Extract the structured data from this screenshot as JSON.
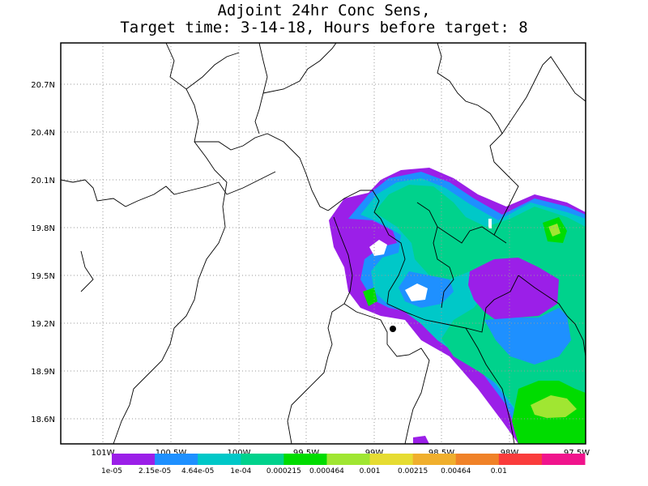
{
  "title": {
    "line1": "Adjoint 24hr Conc Sens,",
    "line2": "Target time: 3-14-18, Hours before target: 8"
  },
  "chart_data": {
    "type": "heatmap",
    "title": "Adjoint 24hr Conc Sens, Target time: 3-14-18, Hours before target: 8",
    "lon_range": [
      -101.3,
      -97.5
    ],
    "lat_range": [
      18.35,
      20.95
    ],
    "grid": true,
    "y_ticks": [
      "20.7N",
      "20.4N",
      "20.1N",
      "19.8N",
      "19.5N",
      "19.2N",
      "18.9N",
      "18.6N"
    ],
    "x_ticks": [
      "101W",
      "100.5W",
      "100W",
      "99.5W",
      "99W",
      "98.5W",
      "98W",
      "97.5W"
    ],
    "legend": {
      "labels": [
        "1e-05",
        "2.15e-05",
        "4.64e-05",
        "1e-04",
        "0.000215",
        "0.000464",
        "0.001",
        "0.00215",
        "0.00464",
        "0.01"
      ],
      "colors": [
        "#9b1fe8",
        "#1e90ff",
        "#00c8c8",
        "#00d28c",
        "#00dc00",
        "#a0e632",
        "#e6dc32",
        "#f0af2d",
        "#f08228",
        "#fa3c3c",
        "#f0148c"
      ]
    },
    "target_marker": {
      "lon": -98.95,
      "lat": 19.15
    }
  }
}
